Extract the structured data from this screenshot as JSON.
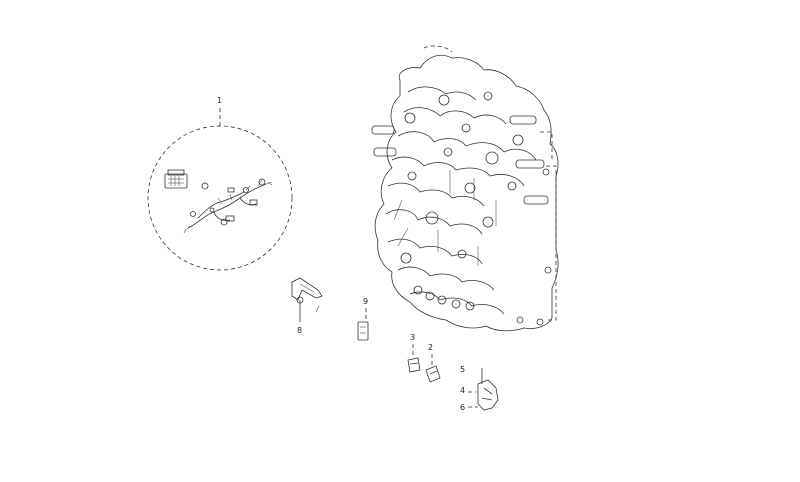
{
  "diagram": {
    "callouts": {
      "c1": "1",
      "c2": "2",
      "c3": "3",
      "c4": "4",
      "c5": "5",
      "c6": "6",
      "c8": "8",
      "c9": "9"
    }
  }
}
